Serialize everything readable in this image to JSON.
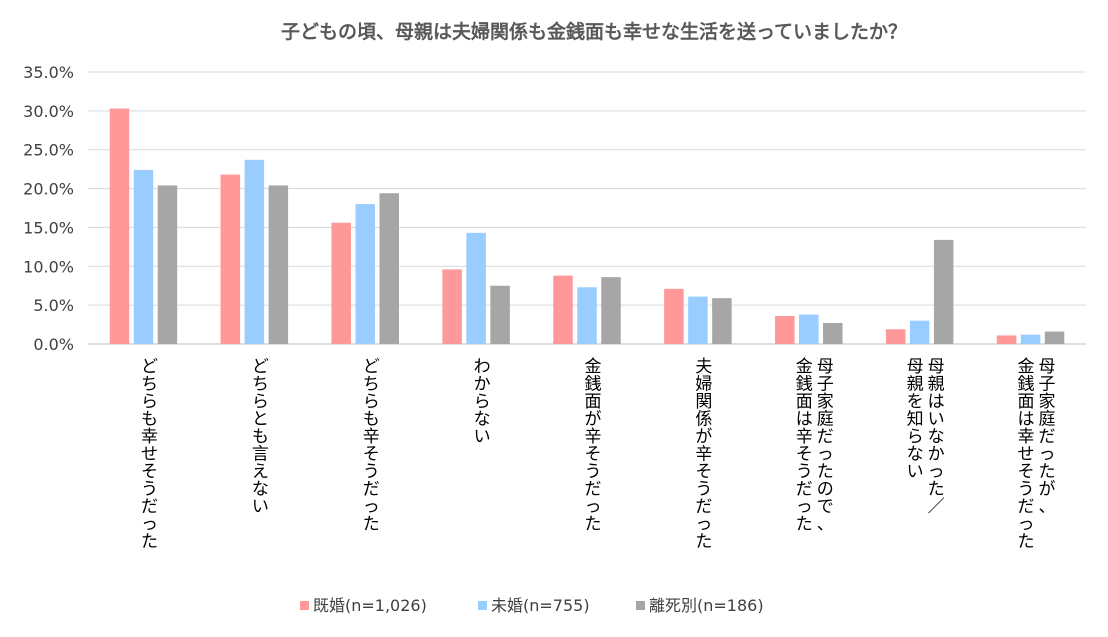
{
  "chart_data": {
    "type": "bar",
    "title": "子どもの頃、母親は夫婦関係も金銭面も幸せな生活を送っていましたか？",
    "xlabel": "",
    "ylabel": "",
    "ylim": [
      0,
      35
    ],
    "ytick_values": [
      0,
      5,
      10,
      15,
      20,
      25,
      30,
      35
    ],
    "ytick_labels": [
      "0.0%",
      "5.0%",
      "10.0%",
      "15.0%",
      "20.0%",
      "25.0%",
      "30.0%",
      "35.0%"
    ],
    "grid": true,
    "legend_position": "bottom",
    "categories": [
      "どちらも幸せそうだった",
      "どちらとも言えない",
      "どちらも辛そうだった",
      "わからない",
      "金銭面が辛そうだった",
      "夫婦関係が辛そうだった",
      "母子家庭だったので、\n金銭面は辛そうだった",
      "母親はいなかった／\n母親を知らない",
      "母子家庭だったが、\n金銭面は幸せそうだった"
    ],
    "series": [
      {
        "name": "既婚(n=1,026)",
        "color": "#ff9999",
        "values": [
          30.3,
          21.8,
          15.6,
          9.6,
          8.8,
          7.1,
          3.6,
          1.9,
          1.1
        ]
      },
      {
        "name": "未婚(n=755)",
        "color": "#99ccff",
        "values": [
          22.4,
          23.7,
          18.0,
          14.3,
          7.3,
          6.1,
          3.8,
          3.0,
          1.2
        ]
      },
      {
        "name": "離死別(n=186)",
        "color": "#a6a6a6",
        "values": [
          20.4,
          20.4,
          19.4,
          7.5,
          8.6,
          5.9,
          2.7,
          13.4,
          1.6
        ]
      }
    ]
  }
}
